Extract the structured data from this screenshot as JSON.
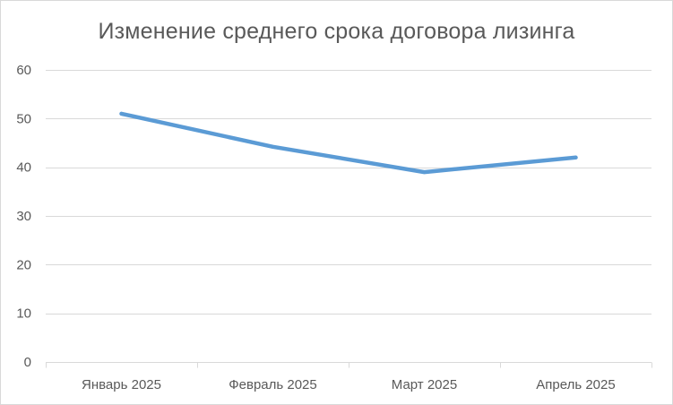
{
  "chart_data": {
    "type": "line",
    "title": "Изменение среднего срока договора лизинга",
    "xlabel": "",
    "ylabel": "",
    "categories": [
      "Январь 2025",
      "Февраль 2025",
      "Март 2025",
      "Апрель 2025"
    ],
    "series": [
      {
        "values": [
          51,
          44.2,
          39,
          42
        ]
      }
    ],
    "ylim": [
      0,
      60
    ],
    "yticks": [
      0,
      10,
      20,
      30,
      40,
      50,
      60
    ],
    "grid": true,
    "legend": "none",
    "line_color": "#5b9bd5",
    "grid_color": "#d9d9d9",
    "text_color": "#595959"
  }
}
